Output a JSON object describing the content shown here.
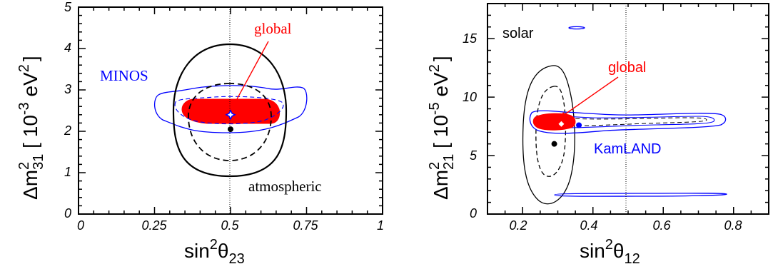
{
  "chart_data": [
    {
      "type": "contour",
      "panel": "left",
      "xlim": [
        0,
        1
      ],
      "ylim": [
        0,
        5
      ],
      "x_ticks": [
        "0",
        "0.25",
        "0.5",
        "0.75",
        "1"
      ],
      "y_ticks": [
        "0",
        "1",
        "2",
        "3",
        "4",
        "5"
      ],
      "xlabel": {
        "main": "sin",
        "sup": "2",
        "greek": "θ",
        "sub": "23"
      },
      "ylabel": {
        "main": "Δm",
        "sup": "2",
        "sub": "31",
        "unit_open": " [ 10",
        "unit_exp": "-3",
        "unit_tail": " eV",
        "unit_sup": "2",
        "unit_close": "]"
      },
      "reference_line_x": 0.5,
      "annotations": {
        "global": {
          "text": "global",
          "color": "#ff0000"
        },
        "minos": {
          "text": "MINOS",
          "color": "#0000ff"
        },
        "atmospheric": {
          "text": "atmospheric",
          "color": "#000000"
        }
      },
      "best_fits": [
        {
          "name": "atmospheric",
          "x": 0.5,
          "y": 2.05,
          "color": "#000000"
        },
        {
          "name": "global",
          "x": 0.5,
          "y": 2.4,
          "color": "#0000ff"
        }
      ],
      "colors": {
        "global": "#ff0000",
        "minos": "#0000ff",
        "atmospheric": "#000000"
      }
    },
    {
      "type": "contour",
      "panel": "right",
      "xlim": [
        0.1,
        0.9
      ],
      "ylim": [
        0,
        18
      ],
      "x_ticks": [
        "0.2",
        "0.4",
        "0.6",
        "0.8"
      ],
      "y_ticks": [
        "0",
        "5",
        "10",
        "15"
      ],
      "xlabel": {
        "main": "sin",
        "sup": "2",
        "greek": "θ",
        "sub": "12"
      },
      "ylabel": {
        "main": "Δm",
        "sup": "2",
        "sub": "21",
        "unit_open": " [ 10",
        "unit_exp": "-5",
        "unit_tail": " eV",
        "unit_sup": "2",
        "unit_close": "]"
      },
      "reference_line_x": 0.5,
      "annotations": {
        "global": {
          "text": "global",
          "color": "#ff0000"
        },
        "solar": {
          "text": "solar",
          "color": "#000000"
        },
        "kamland": {
          "text": "KamLAND",
          "color": "#0000ff"
        }
      },
      "best_fits": [
        {
          "name": "solar",
          "x": 0.29,
          "y": 6.0,
          "color": "#000000"
        },
        {
          "name": "kamland",
          "x": 0.36,
          "y": 7.6,
          "color": "#0000ff"
        },
        {
          "name": "global",
          "x": 0.31,
          "y": 7.7,
          "color": "#ffffff"
        }
      ],
      "colors": {
        "global": "#ff0000",
        "kamland": "#0000ff",
        "solar": "#000000"
      }
    }
  ]
}
